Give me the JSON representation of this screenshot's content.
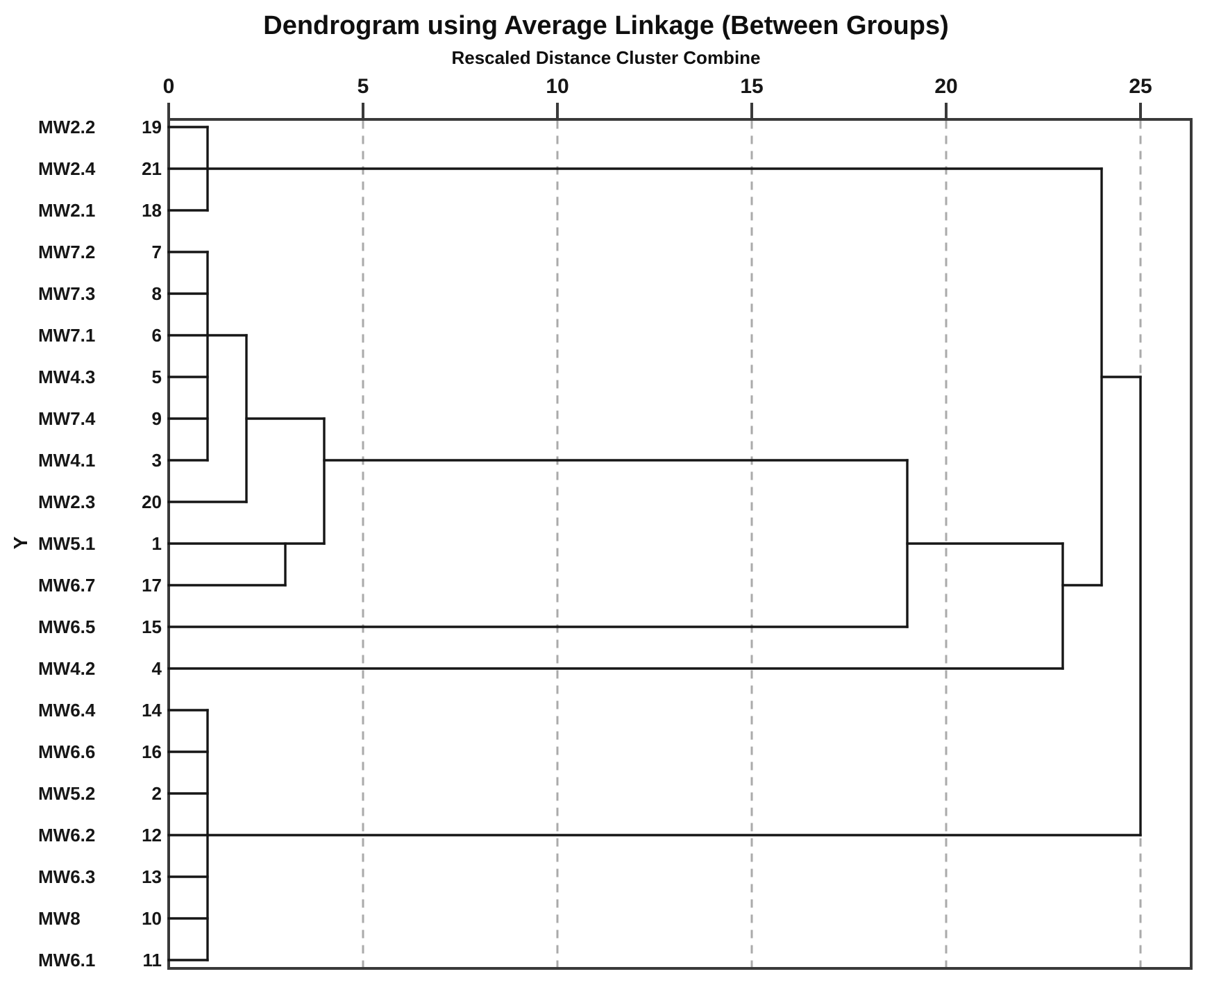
{
  "title": "Dendrogram using Average Linkage (Between Groups)",
  "subtitle": "Rescaled Distance Cluster Combine",
  "y_axis_label": "Y",
  "colors": {
    "background": "#ffffff",
    "dendrogram_line": "#161616",
    "frame_line": "#3a3a3a",
    "gridline": "#aaaaaa",
    "text": "#161616"
  },
  "chart_data": {
    "type": "dendrogram",
    "orientation": "horizontal",
    "title": "Dendrogram using Average Linkage (Between Groups)",
    "xlabel": "Rescaled Distance Cluster Combine",
    "ylabel": "Y",
    "x_ticks": [
      0,
      5,
      10,
      15,
      20,
      25
    ],
    "x_range": [
      0,
      25
    ],
    "grid": {
      "vertical_dashed_at_ticks": [
        5,
        10,
        15,
        20,
        25
      ]
    },
    "leaves": [
      {
        "label": "MW2.2",
        "case_number": 19
      },
      {
        "label": "MW2.4",
        "case_number": 21
      },
      {
        "label": "MW2.1",
        "case_number": 18
      },
      {
        "label": "MW7.2",
        "case_number": 7
      },
      {
        "label": "MW7.3",
        "case_number": 8
      },
      {
        "label": "MW7.1",
        "case_number": 6
      },
      {
        "label": "MW4.3",
        "case_number": 5
      },
      {
        "label": "MW7.4",
        "case_number": 9
      },
      {
        "label": "MW4.1",
        "case_number": 3
      },
      {
        "label": "MW2.3",
        "case_number": 20
      },
      {
        "label": "MW5.1",
        "case_number": 1
      },
      {
        "label": "MW6.7",
        "case_number": 17
      },
      {
        "label": "MW6.5",
        "case_number": 15
      },
      {
        "label": "MW4.2",
        "case_number": 4
      },
      {
        "label": "MW6.4",
        "case_number": 14
      },
      {
        "label": "MW6.6",
        "case_number": 16
      },
      {
        "label": "MW5.2",
        "case_number": 2
      },
      {
        "label": "MW6.2",
        "case_number": 12
      },
      {
        "label": "MW6.3",
        "case_number": 13
      },
      {
        "label": "MW8",
        "case_number": 10
      },
      {
        "label": "MW6.1",
        "case_number": 11
      }
    ],
    "merges": [
      {
        "rescaled_distance": 1,
        "cases": [
          19,
          21,
          18
        ]
      },
      {
        "rescaled_distance": 1,
        "cases": [
          7,
          8,
          6,
          5,
          9,
          3
        ]
      },
      {
        "rescaled_distance": 2,
        "cases": [
          [
            7,
            8,
            6,
            5,
            9,
            3
          ],
          [
            20
          ]
        ]
      },
      {
        "rescaled_distance": 3,
        "cases": [
          [
            1
          ],
          [
            17
          ]
        ]
      },
      {
        "rescaled_distance": 4,
        "cases": [
          [
            7,
            8,
            6,
            5,
            9,
            3,
            20
          ],
          [
            1,
            17
          ]
        ]
      },
      {
        "rescaled_distance": 19,
        "cases": [
          [
            7,
            8,
            6,
            5,
            9,
            3,
            20,
            1,
            17
          ],
          [
            15
          ]
        ]
      },
      {
        "rescaled_distance": 23,
        "cases": [
          [
            7,
            8,
            6,
            5,
            9,
            3,
            20,
            1,
            17,
            15
          ],
          [
            4
          ]
        ]
      },
      {
        "rescaled_distance": 24,
        "cases": [
          [
            7,
            8,
            6,
            5,
            9,
            3,
            20,
            1,
            17,
            15,
            4
          ],
          [
            19,
            21,
            18
          ]
        ]
      },
      {
        "rescaled_distance": 1,
        "cases": [
          14,
          16,
          2,
          12,
          13,
          10,
          11
        ]
      },
      {
        "rescaled_distance": 25,
        "cases": [
          [
            7,
            8,
            6,
            5,
            9,
            3,
            20,
            1,
            17,
            15,
            4,
            19,
            21,
            18
          ],
          [
            14,
            16,
            2,
            12,
            13,
            10,
            11
          ]
        ]
      }
    ],
    "segments": {
      "horizontal_row_d1_d2": [
        [
          1,
          0,
          1
        ],
        [
          2,
          0,
          24
        ],
        [
          3,
          0,
          1
        ],
        [
          4,
          0,
          1
        ],
        [
          5,
          0,
          1
        ],
        [
          6,
          0,
          2
        ],
        [
          7,
          0,
          1
        ],
        [
          7,
          24,
          25
        ],
        [
          8,
          0,
          1
        ],
        [
          8,
          2,
          4
        ],
        [
          9,
          0,
          1
        ],
        [
          9,
          4,
          19
        ],
        [
          10,
          0,
          2
        ],
        [
          11,
          0,
          4
        ],
        [
          11,
          19,
          23
        ],
        [
          12,
          0,
          3
        ],
        [
          12,
          23,
          24
        ],
        [
          13,
          0,
          19
        ],
        [
          14,
          0,
          23
        ],
        [
          15,
          0,
          1
        ],
        [
          16,
          0,
          1
        ],
        [
          17,
          0,
          1
        ],
        [
          18,
          0,
          25
        ],
        [
          19,
          0,
          1
        ],
        [
          20,
          0,
          1
        ],
        [
          21,
          0,
          1
        ]
      ],
      "vertical_d_row1_row2": [
        [
          1,
          1,
          3
        ],
        [
          1,
          4,
          9
        ],
        [
          2,
          6,
          10
        ],
        [
          3,
          11,
          12
        ],
        [
          4,
          8,
          11
        ],
        [
          19,
          9,
          13
        ],
        [
          23,
          11,
          14
        ],
        [
          24,
          2,
          12
        ],
        [
          25,
          7,
          18
        ],
        [
          1,
          15,
          21
        ]
      ]
    }
  }
}
